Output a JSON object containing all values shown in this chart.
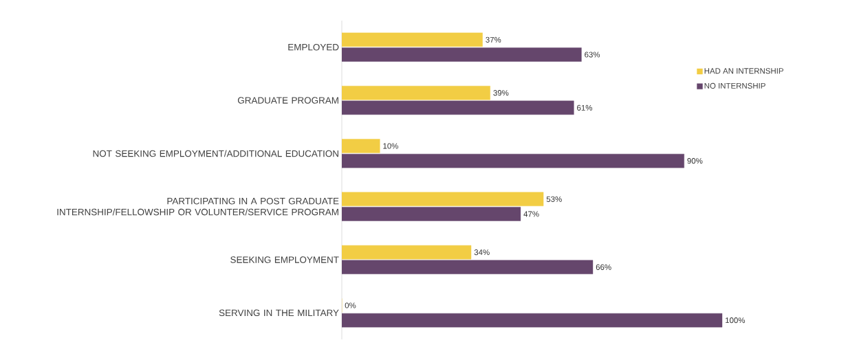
{
  "chart_data": {
    "type": "bar",
    "orientation": "horizontal",
    "categories": [
      "EMPLOYED",
      "GRADUATE PROGRAM",
      "NOT SEEKING EMPLOYMENT/ADDITIONAL EDUCATION",
      "PARTICIPATING IN A POST GRADUATE INTERNSHIP/FELLOWSHIP OR VOLUNTER/SERVICE PROGRAM",
      "SEEKING EMPLOYMENT",
      "SERVING IN THE MILITARY"
    ],
    "series": [
      {
        "name": "HAD AN INTERNSHIP",
        "color": "#f2cd44",
        "values": [
          37,
          39,
          10,
          53,
          34,
          0
        ],
        "value_labels": [
          "37%",
          "39%",
          "10%",
          "53%",
          "34%",
          "0%"
        ]
      },
      {
        "name": "NO INTERNSHIP",
        "color": "#65466c",
        "values": [
          63,
          61,
          90,
          47,
          66,
          100
        ],
        "value_labels": [
          "63%",
          "61%",
          "90%",
          "47%",
          "66%",
          "100%"
        ]
      }
    ],
    "legend": "right",
    "grid": false,
    "tick_labels": "y"
  }
}
